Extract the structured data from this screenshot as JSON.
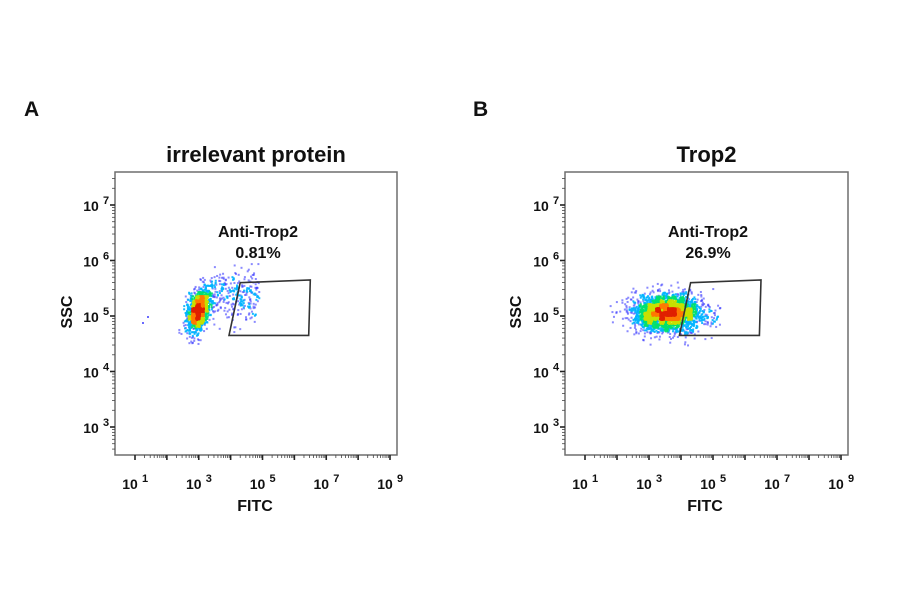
{
  "figure": {
    "panels": [
      {
        "letter": "A",
        "title": "irrelevant protein",
        "gate_name": "Anti-Trop2",
        "gate_percent": "0.81%",
        "x_label": "FITC",
        "y_label": "SSC"
      },
      {
        "letter": "B",
        "title": "Trop2",
        "gate_name": "Anti-Trop2",
        "gate_percent": "26.9%",
        "x_label": "FITC",
        "y_label": "SSC"
      }
    ]
  },
  "chart_data": [
    {
      "type": "scatter",
      "subtype": "flow-cytometry-density-plot",
      "title": "irrelevant protein",
      "xlabel": "FITC",
      "ylabel": "SSC",
      "x_scale": "log",
      "y_scale": "log",
      "xlim": [
        1,
        1000000000.0
      ],
      "ylim": [
        200,
        50000000.0
      ],
      "x_ticks": [
        {
          "base": "10",
          "exp": "1",
          "value": 10
        },
        {
          "base": "10",
          "exp": "3",
          "value": 1000
        },
        {
          "base": "10",
          "exp": "5",
          "value": 100000
        },
        {
          "base": "10",
          "exp": "7",
          "value": 10000000
        },
        {
          "base": "10",
          "exp": "9",
          "value": 1000000000
        }
      ],
      "y_ticks": [
        {
          "base": "10",
          "exp": "3",
          "value": 1000
        },
        {
          "base": "10",
          "exp": "4",
          "value": 10000
        },
        {
          "base": "10",
          "exp": "5",
          "value": 100000
        },
        {
          "base": "10",
          "exp": "6",
          "value": 1000000
        },
        {
          "base": "10",
          "exp": "7",
          "value": 10000000
        }
      ],
      "gate": {
        "name": "Anti-Trop2",
        "percent": 0.81,
        "shape": "polygon",
        "vertices_log10": [
          [
            4.3,
            5.6
          ],
          [
            6.5,
            5.65
          ],
          [
            6.45,
            4.65
          ],
          [
            3.95,
            4.65
          ]
        ]
      },
      "population": {
        "center_log10": [
          3.0,
          5.1
        ],
        "spread_log10": [
          0.35,
          0.25
        ],
        "tail_toward_x_log10": 4.5,
        "density_colors": [
          "#2a2aff",
          "#00b4ff",
          "#00e070",
          "#c8e000",
          "#ff7a00",
          "#e02000"
        ]
      },
      "grid": false,
      "legend": null
    },
    {
      "type": "scatter",
      "subtype": "flow-cytometry-density-plot",
      "title": "Trop2",
      "xlabel": "FITC",
      "ylabel": "SSC",
      "x_scale": "log",
      "y_scale": "log",
      "xlim": [
        1,
        1000000000.0
      ],
      "ylim": [
        200,
        50000000.0
      ],
      "x_ticks": [
        {
          "base": "10",
          "exp": "1",
          "value": 10
        },
        {
          "base": "10",
          "exp": "3",
          "value": 1000
        },
        {
          "base": "10",
          "exp": "5",
          "value": 100000
        },
        {
          "base": "10",
          "exp": "7",
          "value": 10000000
        },
        {
          "base": "10",
          "exp": "9",
          "value": 1000000000
        }
      ],
      "y_ticks": [
        {
          "base": "10",
          "exp": "3",
          "value": 1000
        },
        {
          "base": "10",
          "exp": "4",
          "value": 10000
        },
        {
          "base": "10",
          "exp": "5",
          "value": 100000
        },
        {
          "base": "10",
          "exp": "6",
          "value": 1000000
        },
        {
          "base": "10",
          "exp": "7",
          "value": 10000000
        }
      ],
      "gate": {
        "name": "Anti-Trop2",
        "percent": 26.9,
        "shape": "polygon",
        "vertices_log10": [
          [
            4.3,
            5.6
          ],
          [
            6.5,
            5.65
          ],
          [
            6.45,
            4.65
          ],
          [
            3.95,
            4.65
          ]
        ]
      },
      "population": {
        "center_log10": [
          3.6,
          5.05
        ],
        "spread_log10": [
          0.9,
          0.22
        ],
        "tail_toward_x_log10": 5.8,
        "density_colors": [
          "#2a2aff",
          "#00b4ff",
          "#00e070",
          "#c8e000",
          "#ff7a00",
          "#e02000"
        ]
      },
      "grid": false,
      "legend": null
    }
  ]
}
